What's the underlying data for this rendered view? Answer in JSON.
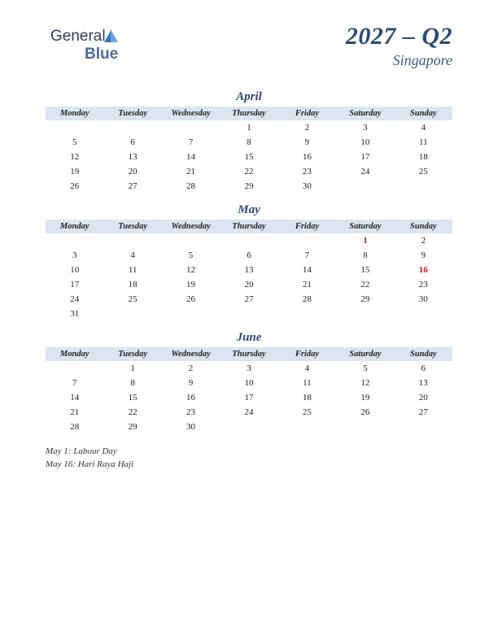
{
  "logo": {
    "part1": "General",
    "part2": "Blue"
  },
  "header": {
    "title": "2027 – Q2",
    "subtitle": "Singapore"
  },
  "dayHeaders": [
    "Monday",
    "Tuesday",
    "Wednesday",
    "Thursday",
    "Friday",
    "Saturday",
    "Sunday"
  ],
  "months": [
    {
      "name": "April",
      "weeks": [
        [
          "",
          "",
          "",
          "1",
          "2",
          "3",
          "4"
        ],
        [
          "5",
          "6",
          "7",
          "8",
          "9",
          "10",
          "11"
        ],
        [
          "12",
          "13",
          "14",
          "15",
          "16",
          "17",
          "18"
        ],
        [
          "19",
          "20",
          "21",
          "22",
          "23",
          "24",
          "25"
        ],
        [
          "26",
          "27",
          "28",
          "29",
          "30",
          "",
          ""
        ]
      ],
      "holidays": []
    },
    {
      "name": "May",
      "weeks": [
        [
          "",
          "",
          "",
          "",
          "",
          "1",
          "2"
        ],
        [
          "3",
          "4",
          "5",
          "6",
          "7",
          "8",
          "9"
        ],
        [
          "10",
          "11",
          "12",
          "13",
          "14",
          "15",
          "16"
        ],
        [
          "17",
          "18",
          "19",
          "20",
          "21",
          "22",
          "23"
        ],
        [
          "24",
          "25",
          "26",
          "27",
          "28",
          "29",
          "30"
        ],
        [
          "31",
          "",
          "",
          "",
          "",
          "",
          ""
        ]
      ],
      "holidays": [
        "1",
        "16"
      ]
    },
    {
      "name": "June",
      "weeks": [
        [
          "",
          "1",
          "2",
          "3",
          "4",
          "5",
          "6"
        ],
        [
          "7",
          "8",
          "9",
          "10",
          "11",
          "12",
          "13"
        ],
        [
          "14",
          "15",
          "16",
          "17",
          "18",
          "19",
          "20"
        ],
        [
          "21",
          "22",
          "23",
          "24",
          "25",
          "26",
          "27"
        ],
        [
          "28",
          "29",
          "30",
          "",
          "",
          "",
          ""
        ]
      ],
      "holidays": []
    }
  ],
  "notes": [
    "May 1: Labour Day",
    "May 16: Hari Raya Haji"
  ],
  "style": {
    "header_bg": "#dbe5f2",
    "title_color": "#2a4a78",
    "holiday_color": "#c01818",
    "page_bg": "#ffffff"
  }
}
